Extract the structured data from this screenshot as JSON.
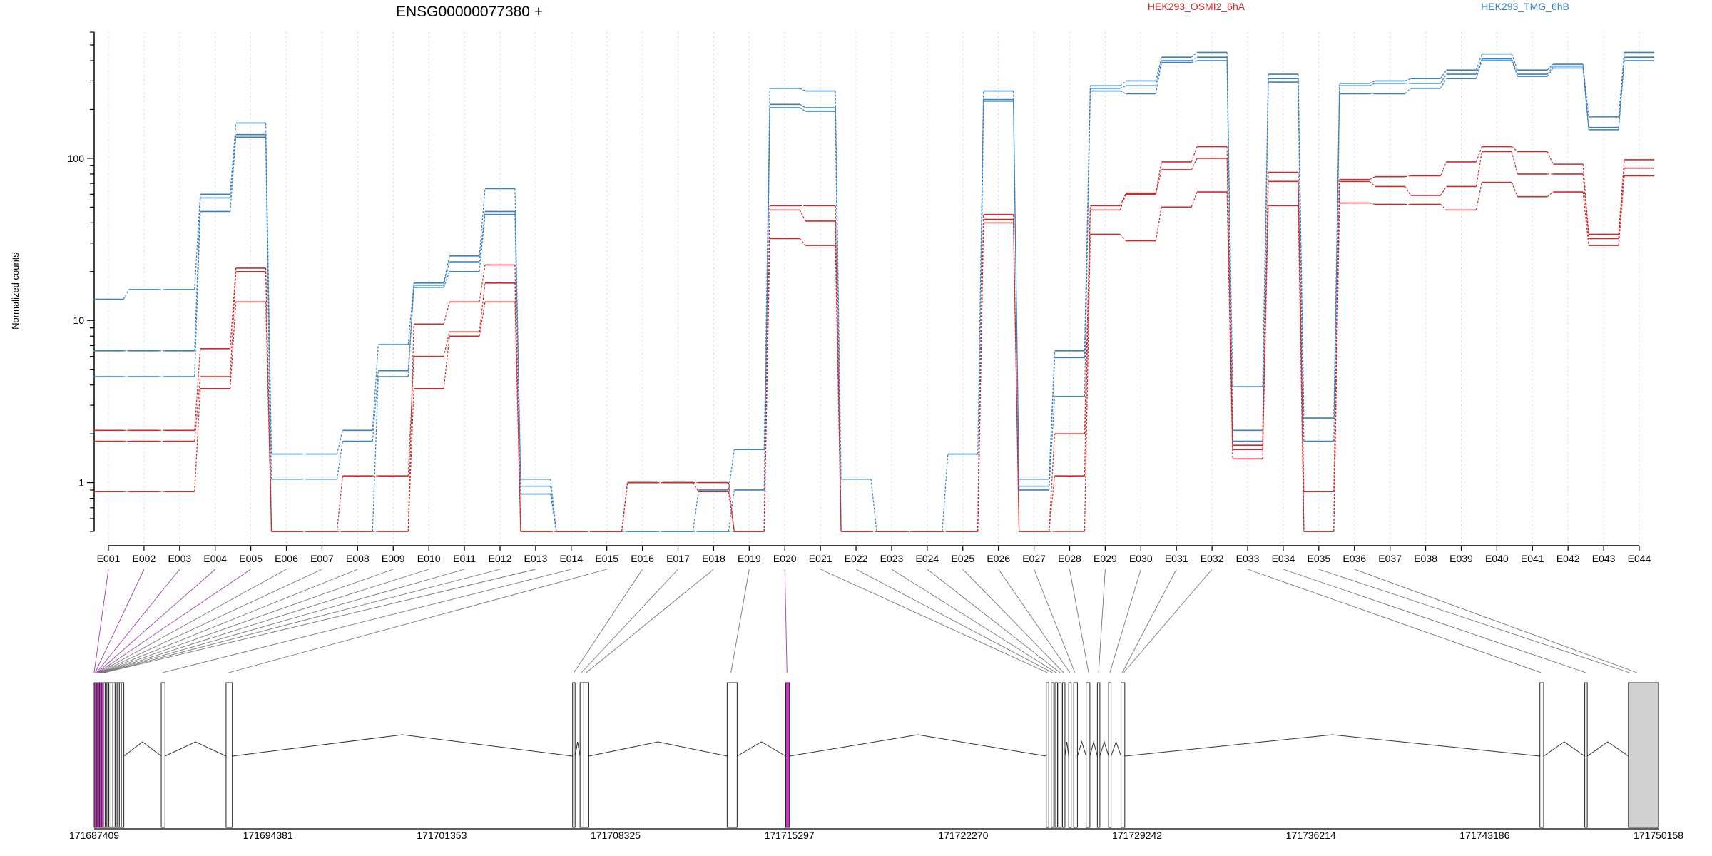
{
  "header": {
    "title": "ENSG00000077380 +",
    "legend": [
      {
        "label": "HEK293_OSMI2_6hA",
        "color": "#d62728"
      },
      {
        "label": "HEK293_TMG_6hB",
        "color": "#3a7fc1"
      }
    ]
  },
  "chart_data": {
    "type": "line",
    "title": "ENSG00000077380 +",
    "ylabel": "Normalized counts",
    "xlabel": "",
    "yscale": "log",
    "ylim": [
      0.5,
      600
    ],
    "yticks": [
      1,
      10,
      100
    ],
    "ytick_labels": [
      "1",
      "10",
      "100"
    ],
    "grid": "vertical dotted per exon",
    "legend_position": "top",
    "categories": [
      "E001",
      "E002",
      "E003",
      "E004",
      "E005",
      "E006",
      "E007",
      "E008",
      "E009",
      "E010",
      "E011",
      "E012",
      "E013",
      "E014",
      "E015",
      "E016",
      "E017",
      "E018",
      "E019",
      "E020",
      "E021",
      "E022",
      "E023",
      "E024",
      "E025",
      "E026",
      "E027",
      "E028",
      "E029",
      "E030",
      "E031",
      "E032",
      "E033",
      "E034",
      "E035",
      "E036",
      "E037",
      "E038",
      "E039",
      "E040",
      "E041",
      "E042",
      "E043",
      "E044"
    ],
    "series": [
      {
        "name": "HEK293_TMG_6hB",
        "color": "#3a7fc1",
        "values": [
          13.5,
          15.5,
          15.5,
          60,
          165,
          1.5,
          1.5,
          2.1,
          7.1,
          17,
          25,
          65,
          1.05,
          0.5,
          0.5,
          0.5,
          0.5,
          0.9,
          1.6,
          270,
          260,
          1.05,
          0.5,
          0.5,
          1.5,
          260,
          1.05,
          6.5,
          280,
          300,
          420,
          450,
          3.9,
          330,
          2.5,
          290,
          300,
          310,
          350,
          440,
          350,
          380,
          180,
          450
        ]
      },
      {
        "name": "HEK293_TMG_6hB",
        "color": "#3a7fc1",
        "values": [
          6.5,
          6.5,
          6.5,
          57,
          140,
          1.05,
          1.05,
          1.8,
          4.9,
          16.5,
          23,
          47,
          0.95,
          0.5,
          0.5,
          0.5,
          0.5,
          0.5,
          0.5,
          215,
          205,
          0.5,
          0.5,
          0.5,
          0.5,
          230,
          0.95,
          5.9,
          270,
          280,
          400,
          420,
          2.1,
          310,
          0.5,
          280,
          290,
          290,
          330,
          410,
          330,
          370,
          155,
          420
        ]
      },
      {
        "name": "HEK293_TMG_6hB",
        "color": "#3a7fc1",
        "values": [
          4.5,
          4.5,
          4.5,
          47,
          135,
          0.5,
          0.5,
          0.5,
          4.5,
          16,
          20,
          45,
          0.85,
          0.5,
          0.5,
          0.5,
          0.5,
          0.5,
          0.9,
          205,
          195,
          0.5,
          0.5,
          0.5,
          0.5,
          225,
          0.9,
          3.4,
          260,
          250,
          390,
          400,
          1.8,
          295,
          1.8,
          250,
          250,
          270,
          310,
          400,
          320,
          360,
          150,
          400
        ]
      },
      {
        "name": "HEK293_OSMI2_6hA",
        "color": "#d62728",
        "values": [
          2.1,
          2.1,
          2.1,
          6.7,
          21,
          0.5,
          0.5,
          0.5,
          0.5,
          9.5,
          13,
          22,
          0.5,
          0.5,
          0.5,
          1.0,
          1.0,
          1.0,
          0.5,
          51,
          51,
          0.5,
          0.5,
          0.5,
          0.5,
          45,
          0.5,
          2.0,
          51,
          61,
          95,
          118,
          1.7,
          82,
          0.88,
          74,
          77,
          78,
          95,
          118,
          110,
          92,
          34,
          98
        ]
      },
      {
        "name": "HEK293_OSMI2_6hA",
        "color": "#d62728",
        "values": [
          1.8,
          1.8,
          1.8,
          4.5,
          20,
          0.5,
          0.5,
          1.1,
          1.1,
          6,
          8.5,
          17,
          0.5,
          0.5,
          0.5,
          1.0,
          1.0,
          0.88,
          0.5,
          48,
          41,
          0.5,
          0.5,
          0.5,
          0.5,
          42,
          0.5,
          1.1,
          48,
          60,
          85,
          100,
          1.6,
          72,
          0.5,
          72,
          67,
          59,
          67,
          110,
          80,
          80,
          32,
          87
        ]
      },
      {
        "name": "HEK293_OSMI2_6hA",
        "color": "#d62728",
        "values": [
          0.88,
          0.88,
          0.88,
          3.8,
          13,
          0.5,
          0.5,
          0.5,
          0.5,
          3.8,
          8.0,
          13,
          0.5,
          0.5,
          0.5,
          1.0,
          1.0,
          0.88,
          0.5,
          32,
          29,
          0.5,
          0.5,
          0.5,
          0.5,
          40,
          0.5,
          0.5,
          34,
          31,
          50,
          62,
          1.4,
          51,
          0.5,
          53,
          52,
          52,
          48,
          71,
          58,
          62,
          29,
          78
        ]
      }
    ],
    "genomic_axis": {
      "tick_labels": [
        "171687409",
        "171694381",
        "171701353",
        "171708325",
        "171715297",
        "171722270",
        "171729242",
        "171736214",
        "171743186",
        "171750158"
      ],
      "exon_blocks": [
        [
          171687409,
          171687500
        ],
        [
          171687500,
          171687560
        ],
        [
          171687560,
          171687620
        ],
        [
          171687620,
          171687700
        ],
        [
          171687700,
          171687780
        ],
        [
          171687780,
          171687850
        ],
        [
          171687850,
          171687920
        ],
        [
          171687920,
          171688000
        ],
        [
          171688000,
          171688080
        ],
        [
          171688080,
          171688160
        ],
        [
          171688160,
          171688250
        ],
        [
          171688250,
          171688330
        ],
        [
          171688330,
          171688420
        ],
        [
          171688420,
          171688500
        ],
        [
          171688500,
          171688600
        ],
        [
          171690100,
          171690250
        ],
        [
          171692700,
          171692950
        ],
        [
          171706600,
          171706700
        ],
        [
          171706900,
          171707050
        ],
        [
          171707050,
          171707250
        ],
        [
          171712800,
          171713200
        ],
        [
          171715150,
          171715300
        ],
        [
          171725600,
          171725700
        ],
        [
          171725800,
          171725900
        ],
        [
          171725950,
          171726050
        ],
        [
          171726100,
          171726200
        ],
        [
          171726250,
          171726350
        ],
        [
          171726500,
          171726600
        ],
        [
          171726700,
          171726850
        ],
        [
          171727200,
          171727350
        ],
        [
          171727650,
          171727750
        ],
        [
          171728100,
          171728200
        ],
        [
          171728600,
          171728750
        ],
        [
          171745400,
          171745550
        ],
        [
          171747200,
          171747300
        ],
        [
          171748950,
          171750158
        ]
      ],
      "highlighted_blocks": [
        0,
        1,
        2,
        3,
        4,
        21
      ],
      "shaded_blocks": [
        35
      ],
      "connector_targets": [
        171687409,
        171687450,
        171687500,
        171687530,
        171687560,
        171687590,
        171687620,
        171687650,
        171687680,
        171687710,
        171687740,
        171687770,
        171687800,
        171690150,
        171692800,
        171706650,
        171706950,
        171707150,
        171712950,
        171715200,
        171725650,
        171725850,
        171726000,
        171726150,
        171726300,
        171726550,
        171726750,
        171727300,
        171727700,
        171728150,
        171728650,
        171728700,
        171745450,
        171747250,
        171749000,
        171749300
      ]
    }
  }
}
